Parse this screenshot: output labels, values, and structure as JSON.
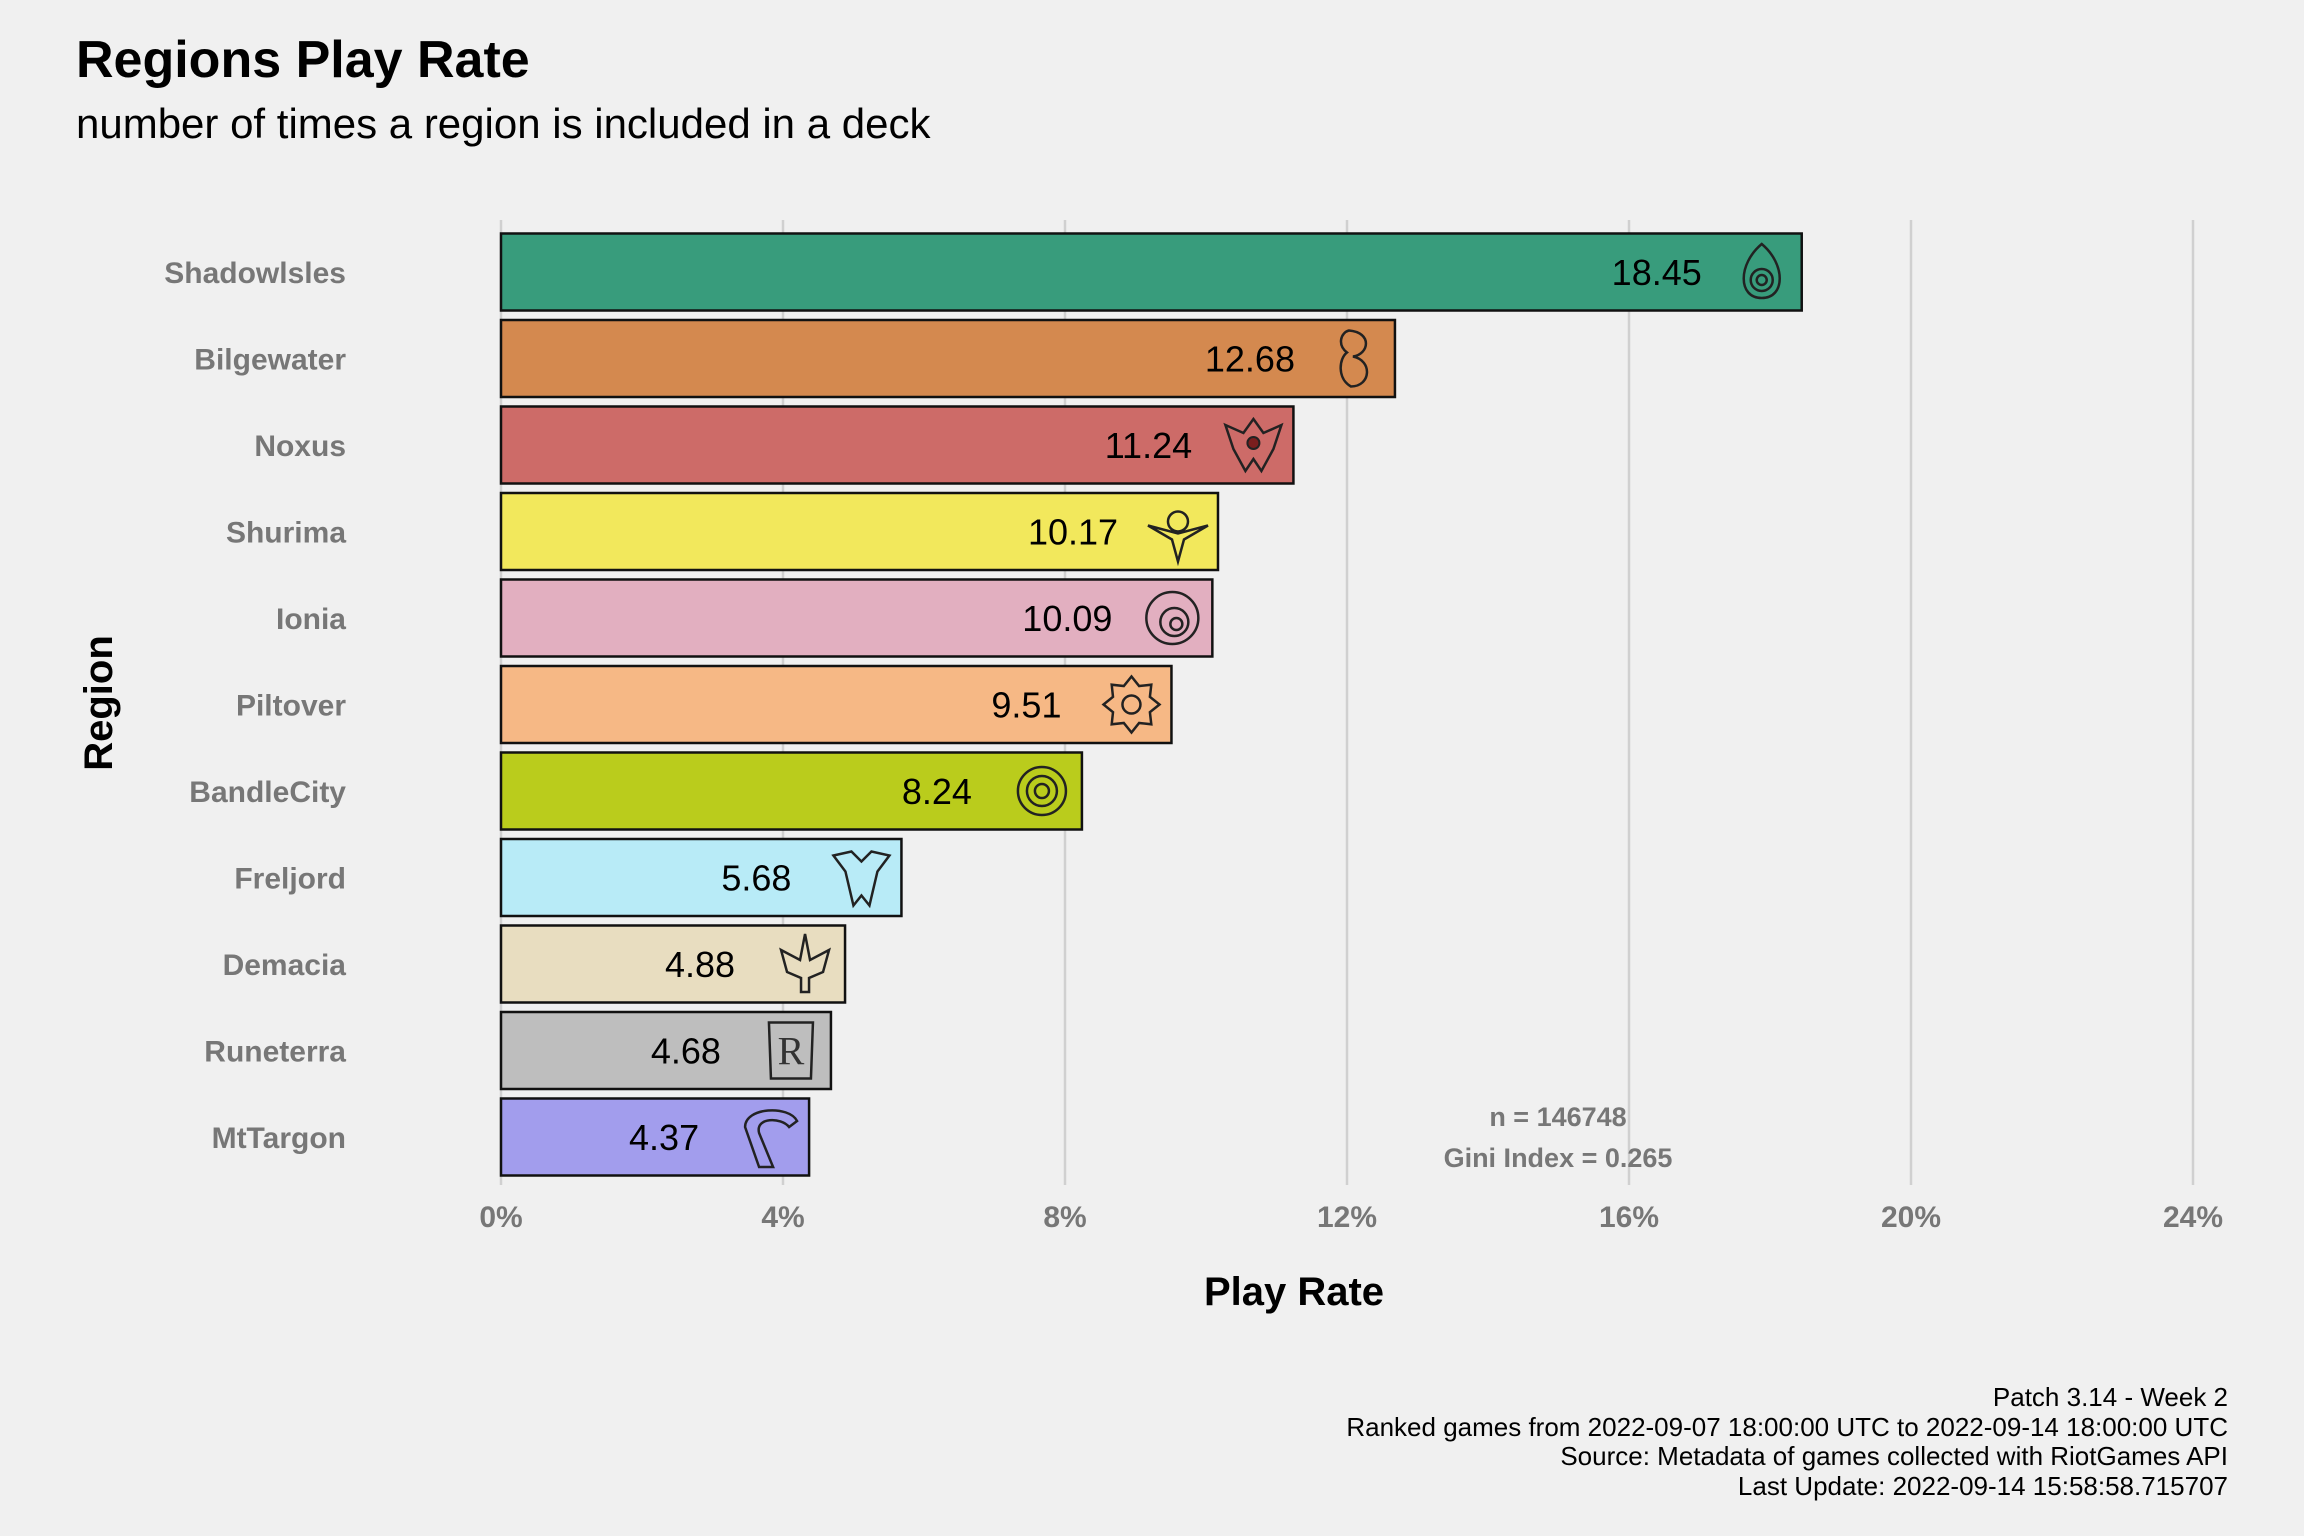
{
  "title": "Regions Play Rate",
  "subtitle": "number of times a region is included in a deck",
  "caption": {
    "line1": "Patch 3.14 - Week 2",
    "line2": "Ranked games from 2022-09-07 18:00:00 UTC to 2022-09-14 18:00:00 UTC",
    "line3": "Source: Metadata of games collected with RiotGames API",
    "line4": "Last Update: 2022-09-14 15:58:58.715707"
  },
  "annotation": {
    "n": "n = 146748",
    "gini": "Gini Index = 0.265"
  },
  "chart_data": {
    "type": "bar",
    "orientation": "horizontal",
    "categories": [
      "Shadowlsles",
      "Bilgewater",
      "Noxus",
      "Shurima",
      "Ionia",
      "Piltover",
      "BandleCity",
      "Freljord",
      "Demacia",
      "Runeterra",
      "MtTargon"
    ],
    "values": [
      18.45,
      12.68,
      11.24,
      10.17,
      10.09,
      9.51,
      8.24,
      5.68,
      4.88,
      4.68,
      4.37
    ],
    "value_labels": [
      "18.45",
      "12.68",
      "11.24",
      "10.17",
      "10.09",
      "9.51",
      "8.24",
      "5.68",
      "4.88",
      "4.68",
      "4.37"
    ],
    "colors": [
      "#389c7c",
      "#d4894f",
      "#cd6b68",
      "#f2e85c",
      "#e2afc0",
      "#f6b885",
      "#bacc1c",
      "#b8ebf7",
      "#e8ddc0",
      "#bebebe",
      "#a29ded"
    ],
    "icons": [
      "shadow-isles-icon",
      "bilgewater-icon",
      "noxus-icon",
      "shurima-icon",
      "ionia-icon",
      "piltover-icon",
      "bandle-city-icon",
      "freljord-icon",
      "demacia-icon",
      "runeterra-icon",
      "targon-icon"
    ],
    "xlabel": "Play Rate",
    "ylabel": "Region",
    "xlim": [
      0,
      24
    ],
    "xticks": [
      0,
      4,
      8,
      12,
      16,
      20,
      24
    ],
    "xtick_labels": [
      "0%",
      "4%",
      "8%",
      "12%",
      "16%",
      "20%",
      "24%"
    ],
    "grid": "vertical major"
  }
}
